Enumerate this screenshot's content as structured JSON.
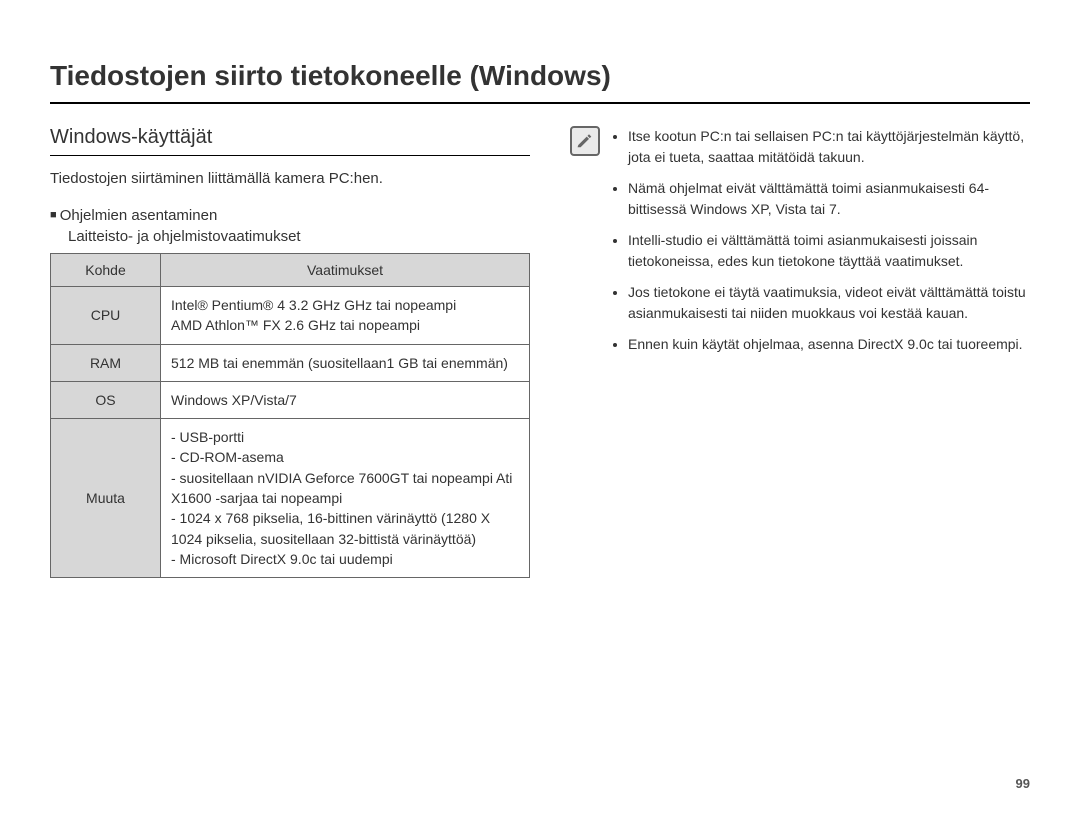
{
  "title": "Tiedostojen siirto tietokoneelle (Windows)",
  "left": {
    "subtitle": "Windows-käyttäjät",
    "intro": "Tiedostojen siirtäminen liittämällä kamera PC:hen.",
    "section_label": "Ohjelmien asentaminen",
    "section_sub": "Laitteisto- ja ohjelmistovaatimukset",
    "table": {
      "header_item": "Kohde",
      "header_req": "Vaatimukset",
      "rows": [
        {
          "item": "CPU",
          "req": "Intel® Pentium® 4 3.2 GHz GHz tai nopeampi\nAMD Athlon™ FX 2.6 GHz tai nopeampi"
        },
        {
          "item": "RAM",
          "req": "512 MB tai enemmän (suositellaan1 GB tai enemmän)"
        },
        {
          "item": "OS",
          "req": "Windows XP/Vista/7"
        },
        {
          "item": "Muuta",
          "req": "- USB-portti\n- CD-ROM-asema\n- suositellaan nVIDIA Geforce 7600GT tai nopeampi Ati X1600 -sarjaa tai nopeampi\n- 1024 x 768 pikselia, 16-bittinen värinäyttö (1280 X 1024 pikselia, suositellaan 32-bittistä värinäyttöä)\n- Microsoft DirectX 9.0c tai uudempi"
        }
      ]
    }
  },
  "right": {
    "notes": [
      "Itse kootun PC:n tai sellaisen PC:n tai käyttöjärjestelmän käyttö, jota ei tueta, saattaa mitätöidä takuun.",
      "Nämä ohjelmat eivät välttämättä toimi asianmukaisesti 64-bittisessä Windows XP, Vista tai 7.",
      "Intelli-studio ei välttämättä toimi asianmukaisesti joissain tietokoneissa, edes kun tietokone täyttää vaatimukset.",
      "Jos tietokone ei täytä vaatimuksia, videot eivät välttämättä toistu asianmukaisesti tai niiden muokkaus voi kestää kauan.",
      "Ennen kuin käytät ohjelmaa, asenna DirectX 9.0c tai tuoreempi."
    ]
  },
  "page_number": "99"
}
